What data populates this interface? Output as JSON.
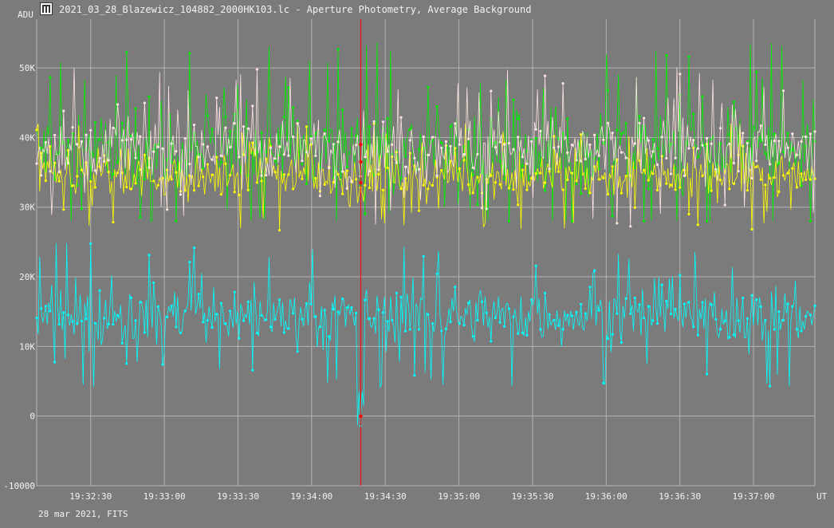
{
  "window": {
    "title": "2021_03_28_Blazewicz_104882_2000HK103.lc - Aperture Photometry, Average Background",
    "icon": "lightcurve-app-icon"
  },
  "footer": "28 mar 2021, FITS",
  "colors": {
    "background": "#7b7b7b",
    "grid": "#b4b4b4",
    "cursor": "#ff0000",
    "series_green": "#00ee00",
    "series_yellow": "#ffff00",
    "series_pink": "#ffe4e1",
    "series_cyan": "#00ffff"
  },
  "chart_data": {
    "type": "scatter",
    "title": "",
    "xlabel": "UT",
    "ylabel": "ADU",
    "x_range": [
      "19:32:08",
      "19:37:25"
    ],
    "ylim": [
      -10000,
      57000
    ],
    "x_ticks": [
      "19:32:30",
      "19:33:00",
      "19:33:30",
      "19:34:00",
      "19:34:30",
      "19:35:00",
      "19:35:30",
      "19:36:00",
      "19:36:30",
      "19:37:00"
    ],
    "y_ticks": [
      {
        "value": -10000,
        "label": "-10000"
      },
      {
        "value": 0,
        "label": "0"
      },
      {
        "value": 10000,
        "label": "10K"
      },
      {
        "value": 20000,
        "label": "20K"
      },
      {
        "value": 30000,
        "label": "30K"
      },
      {
        "value": 40000,
        "label": "40K"
      },
      {
        "value": 50000,
        "label": "50K"
      }
    ],
    "grid": true,
    "cursor_time": "19:34:20",
    "cursor_values": [
      39000,
      36500,
      33500,
      0
    ],
    "series": [
      {
        "color_key": "series_green",
        "mean": 38000,
        "noise": 5500,
        "min": 28000,
        "max": 55500
      },
      {
        "color_key": "series_yellow",
        "mean": 34500,
        "noise": 2800,
        "min": 25500,
        "max": 42000
      },
      {
        "color_key": "series_pink",
        "mean": 38500,
        "noise": 4000,
        "min": 24000,
        "max": 55000
      },
      {
        "color_key": "series_cyan",
        "mean": 14500,
        "noise": 3600,
        "min": -2000,
        "max": 24800
      }
    ]
  }
}
